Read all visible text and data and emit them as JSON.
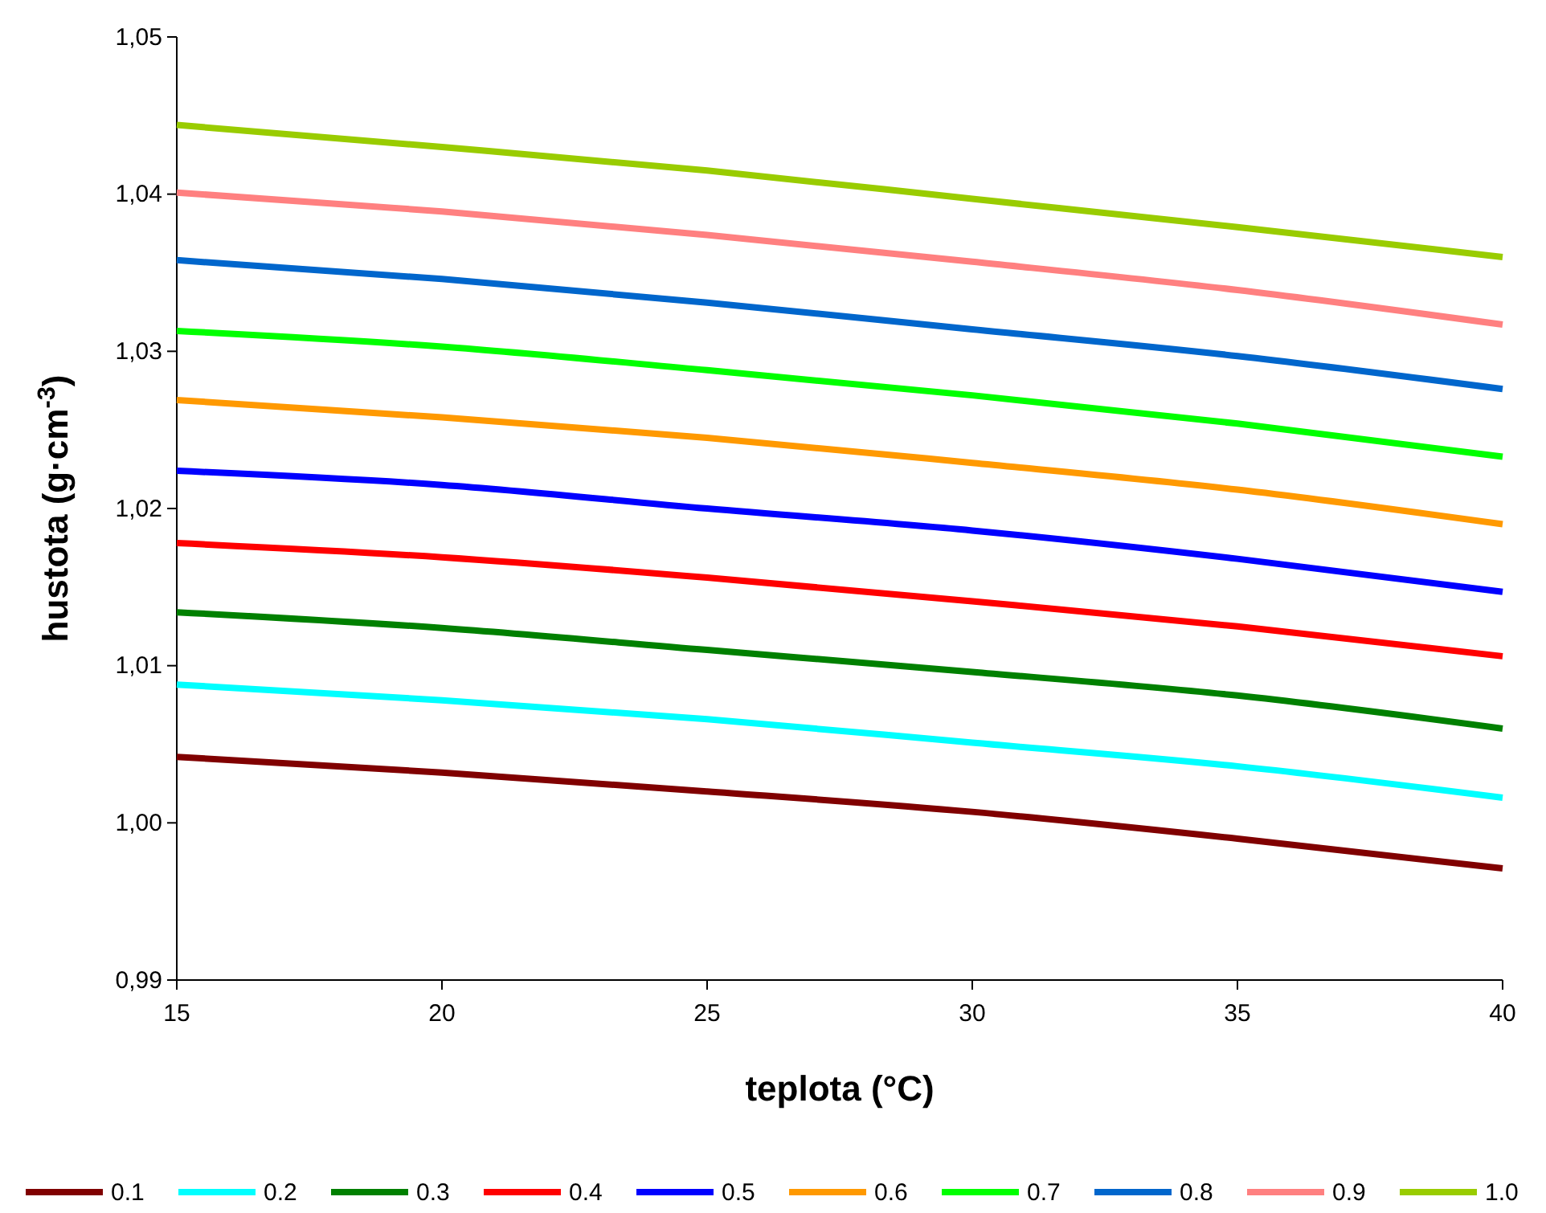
{
  "chart_data": {
    "type": "line",
    "xlabel": "teplota (°C)",
    "ylabel": "hustota (g·cm$^{-3}$)",
    "x": [
      15,
      20,
      25,
      30,
      35,
      40
    ],
    "xlim": [
      15,
      40
    ],
    "xticks": [
      15,
      20,
      25,
      30,
      35,
      40
    ],
    "ylim": [
      0.99,
      1.05
    ],
    "yticks": [
      {
        "value": 0.99,
        "label": "0,99"
      },
      {
        "value": 1.0,
        "label": "1,00"
      },
      {
        "value": 1.01,
        "label": "1,01"
      },
      {
        "value": 1.02,
        "label": "1,02"
      },
      {
        "value": 1.03,
        "label": "1,03"
      },
      {
        "value": 1.04,
        "label": "1,04"
      },
      {
        "value": 1.05,
        "label": "1,05"
      }
    ],
    "grid": false,
    "legend": "bottom",
    "series": [
      {
        "name": "0.1",
        "color": "#800000",
        "values": [
          1.0042,
          1.0032,
          1.002,
          1.0007,
          0.999,
          0.9971
        ]
      },
      {
        "name": "0.2",
        "color": "#00ffff",
        "values": [
          1.0088,
          1.0078,
          1.0066,
          1.0051,
          1.0036,
          1.0016
        ]
      },
      {
        "name": "0.3",
        "color": "#008000",
        "values": [
          1.0134,
          1.0124,
          1.011,
          1.0096,
          1.0081,
          1.006
        ]
      },
      {
        "name": "0.4",
        "color": "#ff0000",
        "values": [
          1.0178,
          1.0169,
          1.0156,
          1.0141,
          1.0125,
          1.0106
        ]
      },
      {
        "name": "0.5",
        "color": "#0000ff",
        "values": [
          1.0224,
          1.0215,
          1.02,
          1.0186,
          1.0168,
          1.0147
        ]
      },
      {
        "name": "0.6",
        "color": "#ff9900",
        "values": [
          1.0269,
          1.0258,
          1.0245,
          1.0229,
          1.0212,
          1.019
        ]
      },
      {
        "name": "0.7",
        "color": "#00ff00",
        "values": [
          1.0313,
          1.0303,
          1.0288,
          1.0272,
          1.0254,
          1.0233
        ]
      },
      {
        "name": "0.8",
        "color": "#0066cc",
        "values": [
          1.0358,
          1.0346,
          1.0331,
          1.0314,
          1.0297,
          1.0276
        ]
      },
      {
        "name": "0.9",
        "color": "#ff8080",
        "values": [
          1.0401,
          1.0389,
          1.0374,
          1.0357,
          1.0339,
          1.0317
        ]
      },
      {
        "name": "1.0",
        "color": "#99cc00",
        "values": [
          1.0444,
          1.043,
          1.0415,
          1.0397,
          1.0379,
          1.036
        ]
      }
    ]
  }
}
